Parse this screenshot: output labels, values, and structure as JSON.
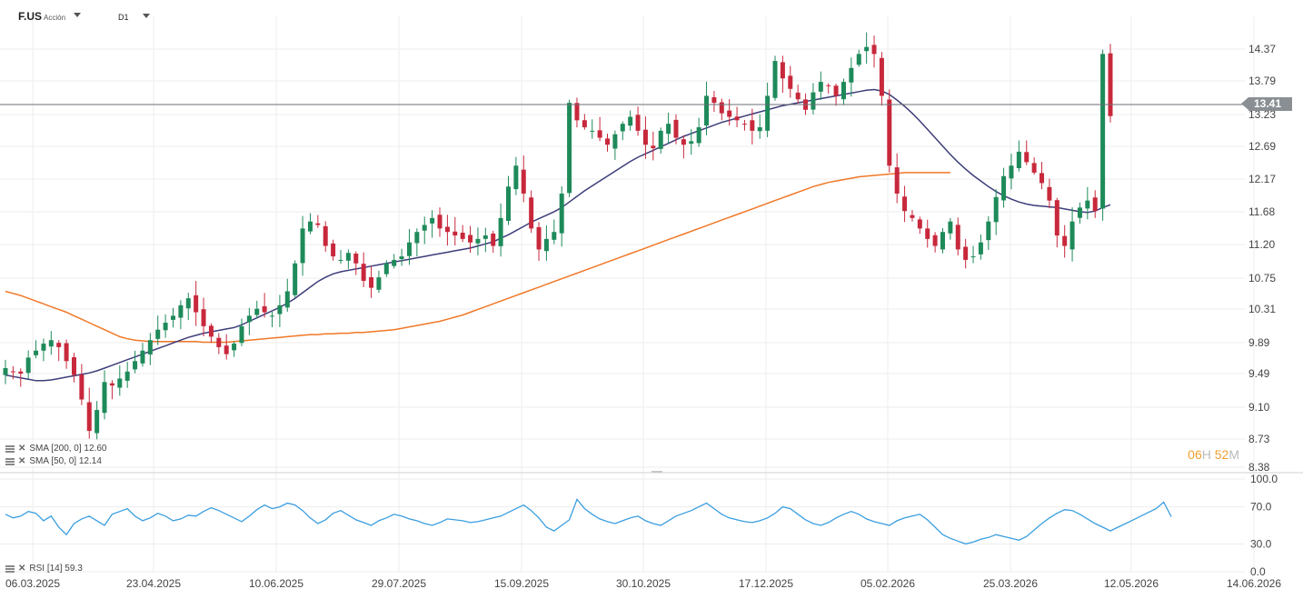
{
  "header": {
    "symbol": "F.US",
    "asset_type": "Acción",
    "timeframe": "D1"
  },
  "indicators": {
    "sma200_label": "SMA [200, 0] 12.60",
    "sma50_label": "SMA [50, 0] 12.14",
    "rsi_label": "RSI [14] 59.3"
  },
  "timer": {
    "hours": "06",
    "h_unit": "H",
    "minutes": "52",
    "m_unit": "M"
  },
  "current_price_label": "13.41",
  "colors": {
    "up": "#1e8a5a",
    "down": "#c8283c",
    "sma50": "#3d3d7a",
    "sma200": "#f07828",
    "rsi": "#3a9ee0",
    "grid": "#ededed"
  },
  "chart_data": {
    "type": "candlestick",
    "y_ticks": [
      "14.37",
      "13.79",
      "13.23",
      "12.69",
      "12.17",
      "11.68",
      "11.20",
      "10.75",
      "10.31",
      "9.89",
      "9.49",
      "9.10",
      "8.73",
      "8.38"
    ],
    "x_ticks": [
      "06.03.2025",
      "23.04.2025",
      "10.06.2025",
      "29.07.2025",
      "15.09.2025",
      "30.10.2025",
      "17.12.2025",
      "05.02.2026",
      "25.03.2026",
      "12.05.2026",
      "14.06.2026"
    ],
    "rsi_ticks": [
      "100.0",
      "70.0",
      "30.0",
      "0.0"
    ],
    "current_price": 13.41,
    "sma200_last": 12.6,
    "sma50_last": 12.14,
    "rsi_last": 59.3,
    "close_series": [
      9.8,
      9.75,
      9.72,
      9.95,
      10.05,
      10.15,
      10.2,
      10.1,
      9.9,
      9.7,
      9.35,
      8.9,
      9.2,
      9.6,
      9.55,
      9.65,
      9.75,
      9.9,
      10.05,
      10.2,
      10.35,
      10.45,
      10.55,
      10.7,
      10.8,
      10.6,
      10.4,
      10.25,
      10.1,
      10.0,
      10.15,
      10.4,
      10.55,
      10.65,
      10.6,
      10.55,
      10.7,
      10.9,
      11.3,
      11.8,
      11.9,
      11.85,
      11.55,
      11.4,
      11.35,
      11.45,
      11.3,
      11.05,
      10.95,
      11.1,
      11.3,
      11.35,
      11.4,
      11.6,
      11.75,
      11.85,
      11.95,
      11.8,
      11.75,
      11.7,
      11.65,
      11.6,
      11.65,
      11.7,
      11.55,
      11.95,
      12.4,
      12.7,
      12.3,
      11.8,
      11.5,
      11.65,
      11.75,
      12.3,
      13.6,
      13.35,
      13.25,
      13.2,
      13.1,
      13.0,
      13.15,
      13.3,
      13.4,
      13.2,
      13.0,
      12.95,
      13.2,
      13.3,
      13.1,
      13.0,
      13.05,
      13.25,
      13.7,
      13.6,
      13.45,
      13.4,
      13.35,
      13.3,
      13.2,
      13.25,
      13.7,
      14.2,
      13.95,
      13.8,
      13.65,
      13.5,
      13.75,
      13.9,
      13.85,
      13.7,
      13.9,
      14.1,
      14.3,
      14.4,
      14.3,
      13.7,
      12.7,
      12.3,
      12.05,
      11.95,
      11.8,
      11.65,
      11.55,
      11.75,
      11.9,
      11.5,
      11.35,
      11.4,
      11.6,
      11.9,
      12.25,
      12.55,
      12.7,
      12.9,
      12.75,
      12.6,
      12.45,
      12.2,
      11.7,
      11.55,
      11.9,
      12.1,
      12.2,
      12.05,
      14.3,
      13.41
    ],
    "sma50_series": [
      9.7,
      9.68,
      9.66,
      9.64,
      9.62,
      9.62,
      9.63,
      9.65,
      9.67,
      9.69,
      9.71,
      9.73,
      9.76,
      9.8,
      9.84,
      9.88,
      9.92,
      9.96,
      10.0,
      10.04,
      10.08,
      10.12,
      10.16,
      10.2,
      10.24,
      10.27,
      10.3,
      10.32,
      10.34,
      10.36,
      10.38,
      10.42,
      10.47,
      10.52,
      10.57,
      10.62,
      10.67,
      10.73,
      10.8,
      10.88,
      10.96,
      11.04,
      11.1,
      11.15,
      11.18,
      11.2,
      11.22,
      11.24,
      11.26,
      11.28,
      11.3,
      11.32,
      11.34,
      11.36,
      11.38,
      11.4,
      11.42,
      11.44,
      11.46,
      11.48,
      11.5,
      11.52,
      11.55,
      11.58,
      11.61,
      11.66,
      11.71,
      11.77,
      11.83,
      11.89,
      11.94,
      11.99,
      12.04,
      12.1,
      12.18,
      12.26,
      12.34,
      12.41,
      12.48,
      12.55,
      12.62,
      12.69,
      12.76,
      12.82,
      12.87,
      12.92,
      12.97,
      13.02,
      13.07,
      13.12,
      13.16,
      13.2,
      13.24,
      13.28,
      13.32,
      13.35,
      13.38,
      13.41,
      13.44,
      13.47,
      13.5,
      13.53,
      13.56,
      13.58,
      13.6,
      13.62,
      13.64,
      13.66,
      13.68,
      13.7,
      13.72,
      13.74,
      13.76,
      13.78,
      13.79,
      13.77,
      13.72,
      13.64,
      13.55,
      13.45,
      13.34,
      13.22,
      13.1,
      12.98,
      12.86,
      12.75,
      12.65,
      12.56,
      12.48,
      12.4,
      12.33,
      12.27,
      12.22,
      12.18,
      12.15,
      12.13,
      12.12,
      12.11,
      12.1,
      12.08,
      12.06,
      12.04,
      12.03,
      12.05,
      12.1,
      12.14
    ],
    "sma200_series": [
      10.9,
      10.87,
      10.84,
      10.8,
      10.76,
      10.72,
      10.68,
      10.64,
      10.6,
      10.55,
      10.5,
      10.45,
      10.4,
      10.35,
      10.3,
      10.25,
      10.22,
      10.2,
      10.19,
      10.18,
      10.18,
      10.18,
      10.18,
      10.18,
      10.18,
      10.18,
      10.17,
      10.17,
      10.17,
      10.17,
      10.18,
      10.19,
      10.2,
      10.21,
      10.22,
      10.23,
      10.24,
      10.25,
      10.26,
      10.27,
      10.28,
      10.28,
      10.29,
      10.29,
      10.3,
      10.3,
      10.31,
      10.31,
      10.32,
      10.33,
      10.34,
      10.35,
      10.37,
      10.39,
      10.41,
      10.43,
      10.45,
      10.47,
      10.5,
      10.53,
      10.56,
      10.6,
      10.64,
      10.68,
      10.72,
      10.76,
      10.8,
      10.84,
      10.88,
      10.92,
      10.96,
      11.0,
      11.04,
      11.08,
      11.12,
      11.16,
      11.2,
      11.24,
      11.28,
      11.32,
      11.36,
      11.4,
      11.44,
      11.48,
      11.52,
      11.56,
      11.6,
      11.64,
      11.68,
      11.72,
      11.76,
      11.8,
      11.84,
      11.88,
      11.92,
      11.96,
      12.0,
      12.04,
      12.08,
      12.12,
      12.16,
      12.2,
      12.24,
      12.28,
      12.32,
      12.36,
      12.4,
      12.43,
      12.46,
      12.48,
      12.5,
      12.52,
      12.54,
      12.55,
      12.56,
      12.57,
      12.58,
      12.59,
      12.6,
      12.6,
      12.6,
      12.6,
      12.6,
      12.6,
      12.6
    ],
    "rsi_series": [
      62,
      58,
      60,
      65,
      63,
      55,
      60,
      48,
      40,
      52,
      57,
      60,
      55,
      50,
      62,
      65,
      68,
      60,
      55,
      58,
      63,
      60,
      55,
      57,
      61,
      60,
      65,
      69,
      66,
      62,
      58,
      54,
      60,
      67,
      72,
      68,
      70,
      74,
      72,
      66,
      58,
      52,
      56,
      63,
      66,
      61,
      56,
      53,
      50,
      55,
      58,
      62,
      60,
      57,
      55,
      52,
      50,
      53,
      57,
      56,
      55,
      53,
      54,
      56,
      58,
      60,
      64,
      68,
      72,
      66,
      58,
      48,
      44,
      50,
      56,
      78,
      68,
      62,
      57,
      54,
      52,
      55,
      58,
      60,
      55,
      52,
      50,
      55,
      60,
      63,
      66,
      70,
      74,
      68,
      62,
      58,
      56,
      54,
      53,
      55,
      58,
      63,
      70,
      68,
      62,
      56,
      52,
      50,
      53,
      58,
      62,
      65,
      62,
      57,
      54,
      52,
      50,
      55,
      58,
      60,
      62,
      56,
      48,
      40,
      36,
      33,
      30,
      32,
      35,
      37,
      40,
      38,
      36,
      34,
      38,
      45,
      52,
      58,
      63,
      67,
      66,
      62,
      57,
      52,
      48,
      44,
      48,
      52,
      56,
      60,
      64,
      68,
      75,
      59.3
    ]
  }
}
